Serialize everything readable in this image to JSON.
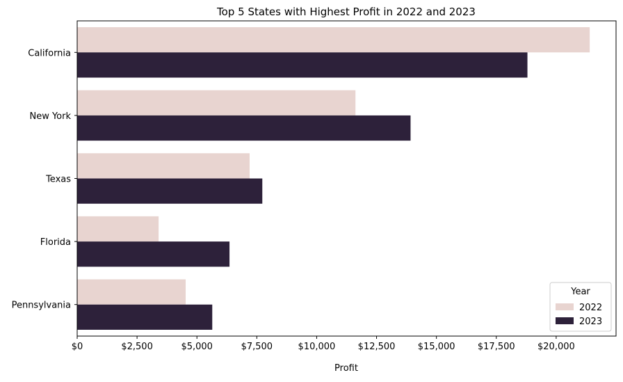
{
  "chart_data": {
    "type": "bar",
    "orientation": "horizontal",
    "title": "Top 5 States with Highest Profit in 2022 and 2023",
    "xlabel": "Profit",
    "ylabel": "",
    "xlim": [
      0,
      22500
    ],
    "x_ticks": [
      0,
      2500,
      5000,
      7500,
      10000,
      12500,
      15000,
      17500,
      20000
    ],
    "x_tick_labels": [
      "$0",
      "$2,500",
      "$5,000",
      "$7,500",
      "$10,000",
      "$12,500",
      "$15,000",
      "$17,500",
      "$20,000"
    ],
    "categories": [
      "California",
      "New York",
      "Texas",
      "Florida",
      "Pennsylvania"
    ],
    "series": [
      {
        "name": "2022",
        "color": "#e8d4d0",
        "values": [
          21400,
          11620,
          7200,
          3400,
          4530
        ]
      },
      {
        "name": "2023",
        "color": "#2d213a",
        "values": [
          18800,
          13920,
          7730,
          6360,
          5640
        ]
      }
    ],
    "legend": {
      "title": "Year",
      "position": "lower-right"
    },
    "grid": false
  }
}
